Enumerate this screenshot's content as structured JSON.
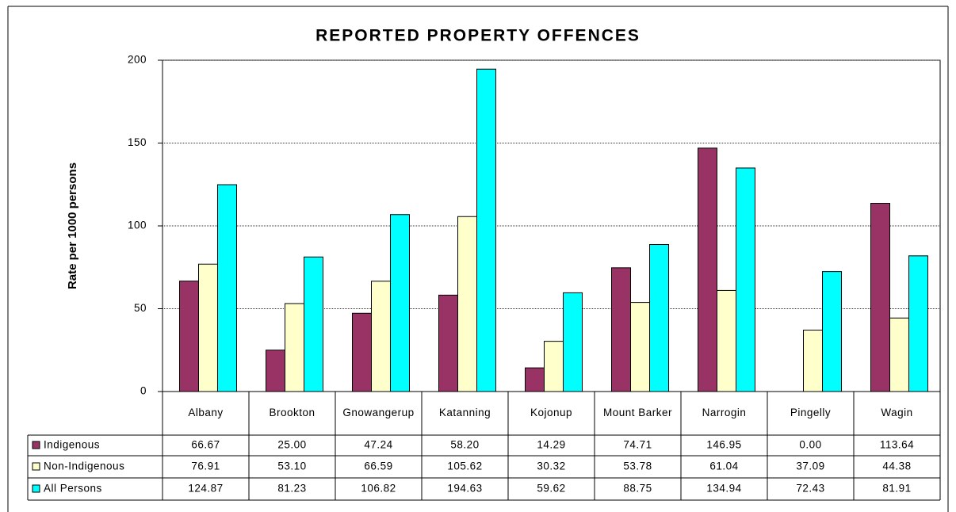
{
  "chart_data": {
    "type": "bar",
    "title": "REPORTED PROPERTY OFFENCES",
    "y_label": "Rate per 1000 persons",
    "categories": [
      "Albany",
      "Brookton",
      "Gnowangerup",
      "Katanning",
      "Kojonup",
      "Mount Barker",
      "Narrogin",
      "Pingelly",
      "Wagin"
    ],
    "series": [
      {
        "name": "Indigenous",
        "color": "#993366",
        "values": [
          66.67,
          25.0,
          47.24,
          58.2,
          14.29,
          74.71,
          146.95,
          0,
          113.64
        ],
        "value_labels": [
          "66.67",
          "25.00",
          "47.24",
          "58.20",
          "14.29",
          "74.71",
          "146.95",
          "0.00",
          "113.64"
        ]
      },
      {
        "name": "Non-Indigenous",
        "color": "#ffffcc",
        "values": [
          76.91,
          53.1,
          66.59,
          105.62,
          30.32,
          53.78,
          61.04,
          37.09,
          44.38
        ],
        "value_labels": [
          "76.91",
          "53.10",
          "66.59",
          "105.62",
          "30.32",
          "53.78",
          "61.04",
          "37.09",
          "44.38"
        ]
      },
      {
        "name": "All Persons",
        "color": "#00ffff",
        "values": [
          124.87,
          81.23,
          106.82,
          194.63,
          59.62,
          88.75,
          134.94,
          72.43,
          81.91
        ],
        "value_labels": [
          "124.87",
          "81.23",
          "106.82",
          "194.63",
          "59.62",
          "88.75",
          "134.94",
          "72.43",
          "81.91"
        ]
      }
    ],
    "ylim": [
      0,
      200
    ],
    "yticks": [
      0,
      50,
      100,
      150,
      200
    ],
    "grid": true
  }
}
